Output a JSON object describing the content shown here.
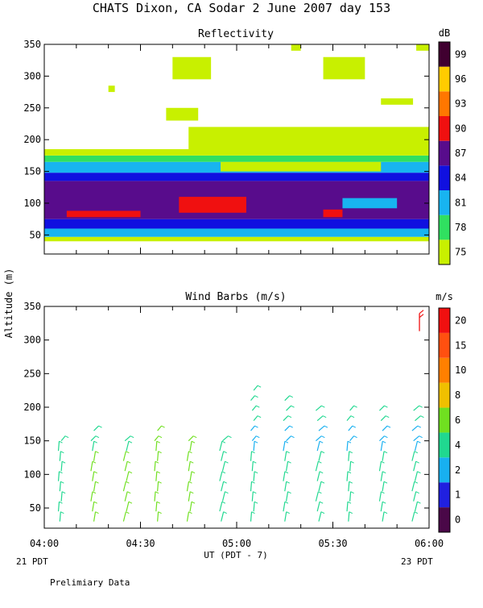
{
  "page_title": "CHATS Dixon, CA  Sodar   2 June 2007  day 153",
  "footer_note": "Prelimiary Data",
  "colors": {
    "refl_levels": [
      "#c8f000",
      "#30e060",
      "#18b4f0",
      "#1010e0",
      "#580c8c",
      "#f01010",
      "#ff7700",
      "#ffcc00",
      "#400030"
    ],
    "wind_levels": [
      "#4a0848",
      "#2020e0",
      "#18b0f0",
      "#20d890",
      "#70e020",
      "#f0c000",
      "#ff8000",
      "#ff5010",
      "#f01010"
    ]
  },
  "chart_data": [
    {
      "type": "heatmap",
      "title": "Reflectivity",
      "colorbar_label": "dB",
      "colorbar_ticks": [
        75,
        78,
        81,
        84,
        87,
        90,
        93,
        96,
        99
      ],
      "ylim": [
        20,
        350
      ],
      "yticks": [
        50,
        100,
        150,
        200,
        250,
        300,
        350
      ],
      "xlim_minutes": [
        0,
        120
      ],
      "x_start": "04:00",
      "x_end": "06:00",
      "cells": [
        {
          "x": [
            0,
            120
          ],
          "y": [
            40,
            47
          ],
          "dB": 77
        },
        {
          "x": [
            0,
            120
          ],
          "y": [
            47,
            60
          ],
          "dB": 81
        },
        {
          "x": [
            0,
            120
          ],
          "y": [
            60,
            75
          ],
          "dB": 85
        },
        {
          "x": [
            0,
            120
          ],
          "y": [
            75,
            135
          ],
          "dB": 88
        },
        {
          "x": [
            0,
            120
          ],
          "y": [
            135,
            148
          ],
          "dB": 85
        },
        {
          "x": [
            0,
            120
          ],
          "y": [
            148,
            165
          ],
          "dB": 82
        },
        {
          "x": [
            0,
            120
          ],
          "y": [
            165,
            175
          ],
          "dB": 79
        },
        {
          "x": [
            0,
            120
          ],
          "y": [
            175,
            185
          ],
          "dB": 76
        },
        {
          "x": [
            45,
            120
          ],
          "y": [
            185,
            220
          ],
          "dB": 76
        },
        {
          "x": [
            55,
            105
          ],
          "y": [
            150,
            165
          ],
          "dB": 75
        },
        {
          "x": [
            42,
            63
          ],
          "y": [
            85,
            110
          ],
          "dB": 91
        },
        {
          "x": [
            7,
            30
          ],
          "y": [
            78,
            88
          ],
          "dB": 91
        },
        {
          "x": [
            87,
            93
          ],
          "y": [
            78,
            90
          ],
          "dB": 91
        },
        {
          "x": [
            93,
            110
          ],
          "y": [
            92,
            108
          ],
          "dB": 82
        },
        {
          "x": [
            40,
            46
          ],
          "y": [
            235,
            245
          ],
          "dB": 81
        },
        {
          "x": [
            38,
            48
          ],
          "y": [
            230,
            250
          ],
          "dB": 77
        },
        {
          "x": [
            40,
            52
          ],
          "y": [
            295,
            330
          ],
          "dB": 75
        },
        {
          "x": [
            87,
            100
          ],
          "y": [
            295,
            330
          ],
          "dB": 75
        },
        {
          "x": [
            105,
            115
          ],
          "y": [
            255,
            265
          ],
          "dB": 75
        },
        {
          "x": [
            20,
            22
          ],
          "y": [
            275,
            285
          ],
          "dB": 75
        },
        {
          "x": [
            77,
            80
          ],
          "y": [
            340,
            350
          ],
          "dB": 75
        },
        {
          "x": [
            116,
            120
          ],
          "y": [
            340,
            350
          ],
          "dB": 75
        }
      ]
    },
    {
      "type": "scatter",
      "title": "Wind Barbs (m/s)",
      "ylabel": "Altitude (m)",
      "xlabel": "UT  (PDT - 7)",
      "colorbar_label": "m/s",
      "colorbar_ticks": [
        0,
        1,
        2,
        4,
        6,
        8,
        10,
        15,
        20
      ],
      "ylim": [
        20,
        350
      ],
      "yticks": [
        50,
        100,
        150,
        200,
        250,
        300,
        350
      ],
      "xticks": [
        "04:00",
        "04:30",
        "05:00",
        "05:30",
        "06:00"
      ],
      "x_left_note": "21 PDT",
      "x_right_note": "23 PDT",
      "columns_minutes": [
        5,
        15,
        25,
        35,
        45,
        55,
        65,
        75,
        85,
        95,
        105,
        115
      ],
      "tops_m": [
        150,
        170,
        155,
        170,
        155,
        160,
        235,
        210,
        195,
        200,
        200,
        195
      ],
      "speed_by_column_ms": [
        5,
        6,
        6,
        7,
        7,
        5,
        4,
        4,
        4,
        4,
        4,
        4
      ],
      "extra_barbs": [
        {
          "minute": 117,
          "altitude_m": 330,
          "speed_ms": 22
        }
      ]
    }
  ]
}
